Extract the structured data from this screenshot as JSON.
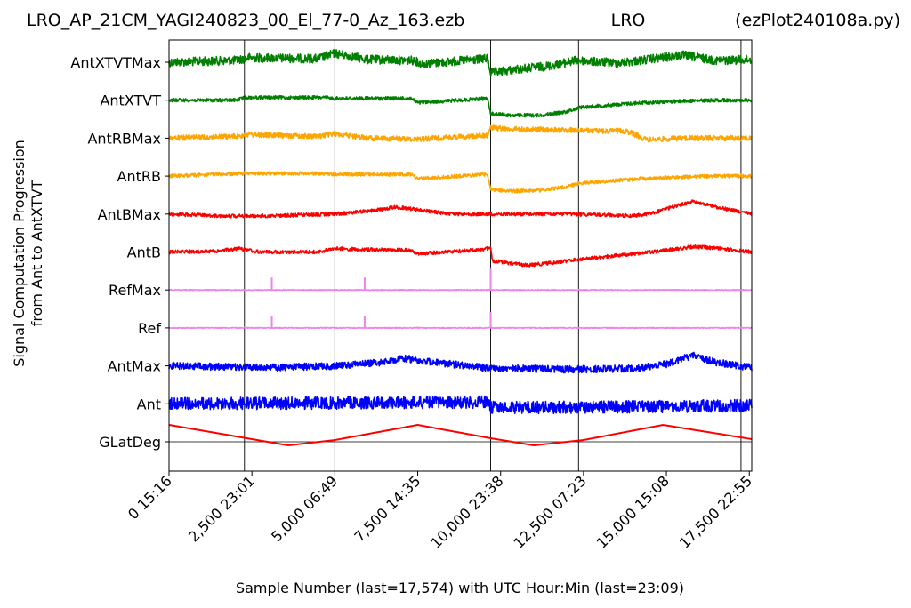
{
  "chart_data": {
    "type": "line",
    "title_left": "LRO_AP_21CM_YAGI240823_00_El_77-0_Az_163.ezb",
    "title_center": "LRO",
    "title_right": "(ezPlot240108a.py)",
    "xlabel": "Sample Number (last=17,574) with UTC Hour:Min (last=23:09)",
    "ylabel_line1": "Signal Computation Progression",
    "ylabel_line2": "from Ant to AntXTVT",
    "xlim": [
      0,
      17574
    ],
    "grid": "vertical lines at hour boundaries",
    "hour_lines_x": [
      2275,
      5000,
      9700,
      12350,
      17250
    ],
    "x_ticks": [
      {
        "x": 0,
        "label": "0  15:16"
      },
      {
        "x": 2500,
        "label": "2,500  23:01"
      },
      {
        "x": 5000,
        "label": "5,000  06:49"
      },
      {
        "x": 7500,
        "label": "7,500  14:35"
      },
      {
        "x": 10000,
        "label": "10,000  23:38"
      },
      {
        "x": 12500,
        "label": "12,500  07:23"
      },
      {
        "x": 15000,
        "label": "15,000  15:08"
      },
      {
        "x": 17500,
        "label": "17,500  22:55"
      }
    ],
    "traces": [
      {
        "name": "AntXTVTMax",
        "color": "#008000",
        "noise": 5,
        "key": [
          [
            0,
            0
          ],
          [
            2000,
            -2
          ],
          [
            2400,
            -5
          ],
          [
            4500,
            -4
          ],
          [
            5000,
            -10
          ],
          [
            6000,
            -3
          ],
          [
            7400,
            -2
          ],
          [
            7600,
            2
          ],
          [
            9600,
            -4
          ],
          [
            9700,
            12
          ],
          [
            10500,
            8
          ],
          [
            11500,
            4
          ],
          [
            12300,
            -2
          ],
          [
            13500,
            1
          ],
          [
            14200,
            -2
          ],
          [
            15500,
            -8
          ],
          [
            16500,
            -2
          ],
          [
            17574,
            -3
          ]
        ]
      },
      {
        "name": "AntXTVT",
        "color": "#008000",
        "noise": 2,
        "key": [
          [
            0,
            0
          ],
          [
            2000,
            0
          ],
          [
            2300,
            -3
          ],
          [
            4600,
            -3
          ],
          [
            5000,
            -2
          ],
          [
            7300,
            -2
          ],
          [
            7500,
            3
          ],
          [
            9600,
            -2
          ],
          [
            9700,
            15
          ],
          [
            10300,
            17
          ],
          [
            11200,
            17
          ],
          [
            12000,
            13
          ],
          [
            12400,
            8
          ],
          [
            13500,
            5
          ],
          [
            14200,
            3
          ],
          [
            15500,
            1
          ],
          [
            16500,
            0
          ],
          [
            17574,
            0
          ]
        ]
      },
      {
        "name": "AntRBMax",
        "color": "#FFA500",
        "noise": 3,
        "key": [
          [
            0,
            0
          ],
          [
            2000,
            -2
          ],
          [
            2300,
            -4
          ],
          [
            4500,
            -2
          ],
          [
            5000,
            -5
          ],
          [
            6000,
            0
          ],
          [
            7500,
            1
          ],
          [
            9600,
            -3
          ],
          [
            9700,
            -12
          ],
          [
            10500,
            -10
          ],
          [
            12000,
            -9
          ],
          [
            13000,
            -8
          ],
          [
            13800,
            -8
          ],
          [
            14000,
            -5
          ],
          [
            14400,
            2
          ],
          [
            15500,
            0
          ],
          [
            16500,
            0
          ],
          [
            17574,
            0
          ]
        ]
      },
      {
        "name": "AntRB",
        "color": "#FFA500",
        "noise": 2,
        "key": [
          [
            0,
            0
          ],
          [
            2300,
            -3
          ],
          [
            4600,
            -3
          ],
          [
            5000,
            -2
          ],
          [
            7300,
            -2
          ],
          [
            7500,
            3
          ],
          [
            9600,
            -2
          ],
          [
            9700,
            15
          ],
          [
            10300,
            17
          ],
          [
            11200,
            16
          ],
          [
            12000,
            12
          ],
          [
            12400,
            8
          ],
          [
            13500,
            5
          ],
          [
            14200,
            3
          ],
          [
            15500,
            1
          ],
          [
            16500,
            0
          ],
          [
            17574,
            0
          ]
        ]
      },
      {
        "name": "AntBMax",
        "color": "#FF0000",
        "noise": 2,
        "key": [
          [
            0,
            0
          ],
          [
            1500,
            2
          ],
          [
            3000,
            2
          ],
          [
            5000,
            0
          ],
          [
            6200,
            -4
          ],
          [
            6800,
            -8
          ],
          [
            7500,
            -5
          ],
          [
            8500,
            0
          ],
          [
            10000,
            0
          ],
          [
            12000,
            0
          ],
          [
            14000,
            2
          ],
          [
            14500,
            0
          ],
          [
            15000,
            -6
          ],
          [
            15800,
            -14
          ],
          [
            16500,
            -8
          ],
          [
            17574,
            0
          ]
        ]
      },
      {
        "name": "AntB",
        "color": "#FF0000",
        "noise": 2,
        "key": [
          [
            0,
            0
          ],
          [
            1500,
            -1
          ],
          [
            2100,
            -4
          ],
          [
            2700,
            0
          ],
          [
            4500,
            0
          ],
          [
            5000,
            -4
          ],
          [
            5700,
            -3
          ],
          [
            7300,
            -2
          ],
          [
            7500,
            2
          ],
          [
            9500,
            -3
          ],
          [
            9700,
            -5
          ],
          [
            9750,
            10
          ],
          [
            10800,
            15
          ],
          [
            11600,
            12
          ],
          [
            12400,
            8
          ],
          [
            13500,
            4
          ],
          [
            15000,
            -2
          ],
          [
            15800,
            -6
          ],
          [
            16600,
            -4
          ],
          [
            17574,
            0
          ]
        ]
      },
      {
        "name": "RefMax",
        "color": "#EE82EE",
        "noise": 0.5,
        "spikes": [
          [
            3100,
            -14
          ],
          [
            5900,
            -14
          ],
          [
            9700,
            -24
          ]
        ],
        "key": [
          [
            0,
            0
          ],
          [
            17574,
            0
          ]
        ]
      },
      {
        "name": "Ref",
        "color": "#EE82EE",
        "noise": 0.5,
        "spikes": [
          [
            3100,
            -14
          ],
          [
            5900,
            -14
          ],
          [
            9700,
            -18
          ]
        ],
        "key": [
          [
            0,
            0
          ],
          [
            17574,
            0
          ]
        ]
      },
      {
        "name": "AntMax",
        "color": "#0000FF",
        "noise": 4,
        "key": [
          [
            0,
            0
          ],
          [
            3000,
            2
          ],
          [
            5000,
            0
          ],
          [
            6500,
            -4
          ],
          [
            7000,
            -9
          ],
          [
            8000,
            -4
          ],
          [
            9500,
            2
          ],
          [
            12000,
            4
          ],
          [
            14000,
            3
          ],
          [
            15000,
            -2
          ],
          [
            15800,
            -12
          ],
          [
            16500,
            -4
          ],
          [
            17574,
            2
          ]
        ]
      },
      {
        "name": "Ant",
        "color": "#0000FF",
        "noise": 7,
        "key": [
          [
            0,
            0
          ],
          [
            9600,
            -2
          ],
          [
            9700,
            4
          ],
          [
            12000,
            4
          ],
          [
            17574,
            2
          ]
        ]
      },
      {
        "name": "GLatDeg",
        "color": "#FF0000",
        "noise": 0,
        "key": [
          [
            0,
            -19
          ],
          [
            3600,
            4
          ],
          [
            5000,
            -2
          ],
          [
            7500,
            -19
          ],
          [
            9700,
            -4
          ],
          [
            11000,
            4
          ],
          [
            12500,
            -2
          ],
          [
            14900,
            -19
          ],
          [
            17574,
            -3
          ]
        ]
      }
    ]
  }
}
